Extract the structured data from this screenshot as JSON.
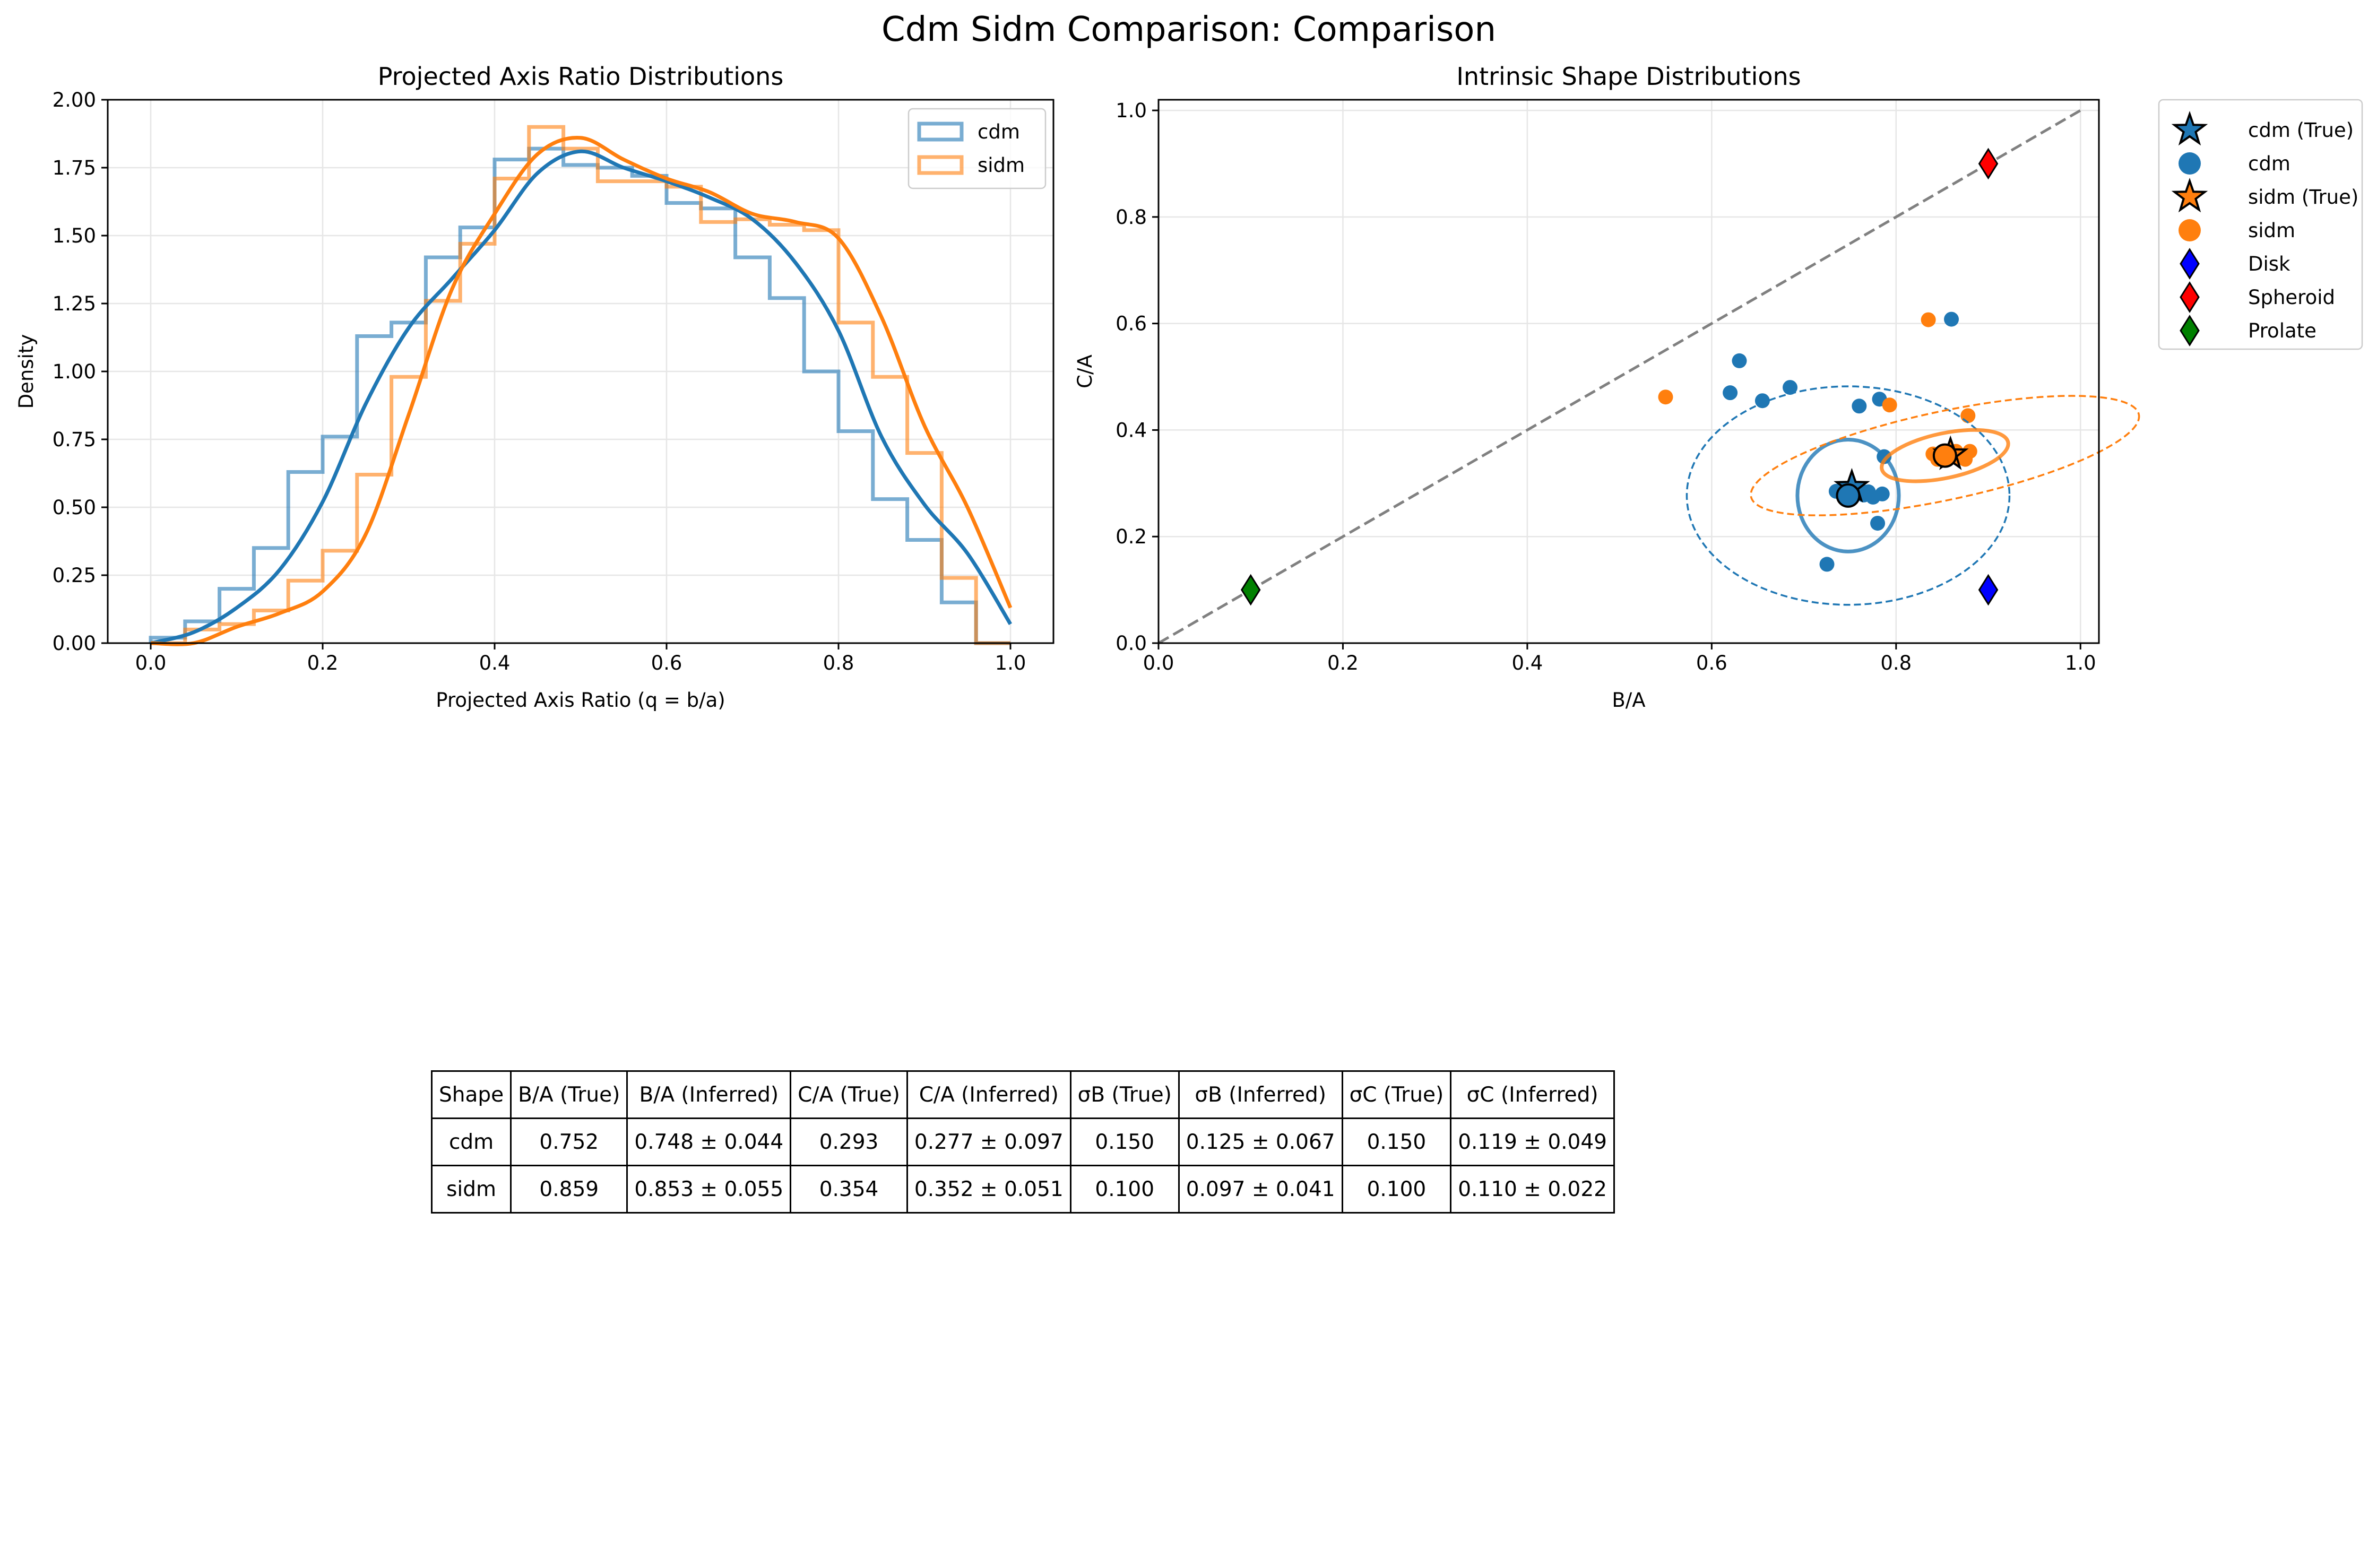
{
  "figure": {
    "suptitle": "Cdm Sidm Comparison: Comparison"
  },
  "colors": {
    "cdm": "#1f77b4",
    "sidm": "#ff7f0e",
    "disk": "#0000ff",
    "spheroid": "#ff0000",
    "prolate": "#008000",
    "diagonal": "#808080",
    "grid": "#e6e6e6"
  },
  "chart_data": [
    {
      "type": "histogram",
      "title": "Projected Axis Ratio Distributions",
      "xlabel": "Projected Axis Ratio (q = b/a)",
      "ylabel": "Density",
      "xlim": [
        -0.05,
        1.05
      ],
      "ylim": [
        0,
        2.0
      ],
      "xticks": [
        0.0,
        0.2,
        0.4,
        0.6,
        0.8,
        1.0
      ],
      "xtick_labels": [
        "0.0",
        "0.2",
        "0.4",
        "0.6",
        "0.8",
        "1.0"
      ],
      "yticks": [
        0,
        0.25,
        0.5,
        0.75,
        1.0,
        1.25,
        1.5,
        1.75,
        2.0
      ],
      "ytick_labels": [
        "0.00",
        "0.25",
        "0.50",
        "0.75",
        "1.00",
        "1.25",
        "1.50",
        "1.75",
        "2.00"
      ],
      "grid": true,
      "legend": {
        "position": "upper right",
        "entries": [
          "cdm",
          "sidm"
        ]
      },
      "series": [
        {
          "name": "cdm",
          "color": "#1f77b4",
          "bin_edges": [
            0.0,
            0.04,
            0.08,
            0.12,
            0.16,
            0.2,
            0.24,
            0.28,
            0.32,
            0.36,
            0.4,
            0.44,
            0.48,
            0.52,
            0.56,
            0.6,
            0.64,
            0.68,
            0.72,
            0.76,
            0.8,
            0.84,
            0.88,
            0.92,
            0.96,
            1.0
          ],
          "hist": [
            0.02,
            0.08,
            0.2,
            0.35,
            0.63,
            0.76,
            1.13,
            1.18,
            1.42,
            1.53,
            1.78,
            1.82,
            1.76,
            1.75,
            1.72,
            1.62,
            1.6,
            1.42,
            1.27,
            1.0,
            0.78,
            0.53,
            0.38,
            0.15,
            0.0
          ],
          "kde_x": [
            0.0,
            0.05,
            0.1,
            0.15,
            0.2,
            0.25,
            0.3,
            0.35,
            0.4,
            0.45,
            0.5,
            0.55,
            0.6,
            0.65,
            0.7,
            0.75,
            0.8,
            0.85,
            0.9,
            0.95,
            1.0
          ],
          "kde_y": [
            0.0,
            0.04,
            0.13,
            0.27,
            0.52,
            0.88,
            1.16,
            1.34,
            1.52,
            1.73,
            1.81,
            1.75,
            1.7,
            1.64,
            1.56,
            1.4,
            1.15,
            0.76,
            0.51,
            0.33,
            0.07
          ]
        },
        {
          "name": "sidm",
          "color": "#ff7f0e",
          "bin_edges": [
            0.0,
            0.04,
            0.08,
            0.12,
            0.16,
            0.2,
            0.24,
            0.28,
            0.32,
            0.36,
            0.4,
            0.44,
            0.48,
            0.52,
            0.56,
            0.6,
            0.64,
            0.68,
            0.72,
            0.76,
            0.8,
            0.84,
            0.88,
            0.92,
            0.96,
            1.0
          ],
          "hist": [
            0.0,
            0.05,
            0.07,
            0.12,
            0.23,
            0.34,
            0.62,
            0.98,
            1.26,
            1.47,
            1.71,
            1.9,
            1.82,
            1.7,
            1.7,
            1.68,
            1.55,
            1.56,
            1.54,
            1.52,
            1.18,
            0.98,
            0.7,
            0.24,
            0.0
          ],
          "kde_x": [
            0.0,
            0.05,
            0.1,
            0.15,
            0.2,
            0.25,
            0.3,
            0.35,
            0.4,
            0.45,
            0.5,
            0.55,
            0.6,
            0.65,
            0.7,
            0.75,
            0.8,
            0.85,
            0.9,
            0.95,
            1.0
          ],
          "kde_y": [
            0.0,
            0.0,
            0.06,
            0.11,
            0.19,
            0.4,
            0.84,
            1.3,
            1.58,
            1.8,
            1.86,
            1.78,
            1.71,
            1.66,
            1.58,
            1.55,
            1.49,
            1.2,
            0.8,
            0.5,
            0.13
          ]
        }
      ]
    },
    {
      "type": "scatter",
      "title": "Intrinsic Shape Distributions",
      "xlabel": "B/A",
      "ylabel": "C/A",
      "xlim": [
        0,
        1.02
      ],
      "ylim": [
        0,
        1.02
      ],
      "xticks": [
        0.0,
        0.2,
        0.4,
        0.6,
        0.8,
        1.0
      ],
      "xtick_labels": [
        "0.0",
        "0.2",
        "0.4",
        "0.6",
        "0.8",
        "1.0"
      ],
      "yticks": [
        0.0,
        0.2,
        0.4,
        0.6,
        0.8,
        1.0
      ],
      "ytick_labels": [
        "0.0",
        "0.2",
        "0.4",
        "0.6",
        "0.8",
        "1.0"
      ],
      "grid": true,
      "diagonal": {
        "from": [
          0,
          0
        ],
        "to": [
          1,
          1
        ],
        "style": "dashed"
      },
      "legend": {
        "position": "outside upper right",
        "entries": [
          "cdm (True)",
          "cdm",
          "sidm (True)",
          "sidm",
          "Disk",
          "Spheroid",
          "Prolate"
        ]
      },
      "series": [
        {
          "name": "cdm",
          "color": "#1f77b4",
          "points": [
            [
              0.63,
              0.53
            ],
            [
              0.62,
              0.47
            ],
            [
              0.655,
              0.455
            ],
            [
              0.685,
              0.48
            ],
            [
              0.76,
              0.445
            ],
            [
              0.782,
              0.458
            ],
            [
              0.787,
              0.35
            ],
            [
              0.725,
              0.148
            ],
            [
              0.78,
              0.225
            ],
            [
              0.86,
              0.608
            ],
            [
              0.735,
              0.285
            ],
            [
              0.745,
              0.28
            ],
            [
              0.755,
              0.282
            ],
            [
              0.765,
              0.278
            ],
            [
              0.77,
              0.284
            ],
            [
              0.775,
              0.274
            ],
            [
              0.785,
              0.28
            ],
            [
              0.75,
              0.272
            ],
            [
              0.76,
              0.29
            ]
          ],
          "true": [
            0.752,
            0.293
          ],
          "inferred": [
            0.748,
            0.277
          ],
          "ellipse_inner": {
            "center": [
              0.748,
              0.277
            ],
            "half_width": 0.055,
            "half_height": 0.105,
            "angle_deg": 0
          },
          "ellipse_outer": {
            "center": [
              0.748,
              0.277
            ],
            "half_width": 0.175,
            "half_height": 0.205,
            "angle_deg": 0
          }
        },
        {
          "name": "sidm",
          "color": "#ff7f0e",
          "points": [
            [
              0.55,
              0.462
            ],
            [
              0.835,
              0.607
            ],
            [
              0.793,
              0.447
            ],
            [
              0.878,
              0.427
            ],
            [
              0.84,
              0.355
            ],
            [
              0.85,
              0.35
            ],
            [
              0.86,
              0.358
            ],
            [
              0.87,
              0.352
            ],
            [
              0.88,
              0.36
            ],
            [
              0.845,
              0.345
            ],
            [
              0.875,
              0.345
            ],
            [
              0.865,
              0.36
            ]
          ],
          "true": [
            0.859,
            0.354
          ],
          "inferred": [
            0.853,
            0.352
          ],
          "ellipse_inner": {
            "center": [
              0.853,
              0.352
            ],
            "half_width": 0.07,
            "half_height": 0.042,
            "angle_deg": -12
          },
          "ellipse_outer": {
            "center": [
              0.853,
              0.352
            ],
            "half_width": 0.215,
            "half_height": 0.083,
            "angle_deg": -12
          }
        }
      ],
      "references": [
        {
          "name": "Disk",
          "x": 0.9,
          "y": 0.1,
          "color": "#0000ff"
        },
        {
          "name": "Spheroid",
          "x": 0.9,
          "y": 0.9,
          "color": "#ff0000"
        },
        {
          "name": "Prolate",
          "x": 0.1,
          "y": 0.1,
          "color": "#008000"
        }
      ]
    }
  ],
  "table": {
    "headers": [
      "Shape",
      "B/A (True)",
      "B/A (Inferred)",
      "C/A (True)",
      "C/A (Inferred)",
      "σB (True)",
      "σB (Inferred)",
      "σC (True)",
      "σC (Inferred)"
    ],
    "rows": [
      [
        "cdm",
        "0.752",
        "0.748 ± 0.044",
        "0.293",
        "0.277 ± 0.097",
        "0.150",
        "0.125 ± 0.067",
        "0.150",
        "0.119 ± 0.049"
      ],
      [
        "sidm",
        "0.859",
        "0.853 ± 0.055",
        "0.354",
        "0.352 ± 0.051",
        "0.100",
        "0.097 ± 0.041",
        "0.100",
        "0.110 ± 0.022"
      ]
    ]
  }
}
